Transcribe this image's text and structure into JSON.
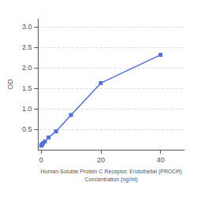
{
  "chart_data": {
    "type": "line",
    "xlabel": "Human Soluble Protein C Receptor, Endothelial (PROCR)\nConcentration (ng/ml)",
    "ylabel": "OD",
    "x": [
      0,
      0.156,
      0.313,
      0.625,
      1.25,
      2.5,
      5,
      10,
      20,
      40
    ],
    "values": [
      0.1,
      0.115,
      0.13,
      0.16,
      0.2,
      0.3,
      0.45,
      0.85,
      1.63,
      2.32
    ],
    "marker": "square",
    "xlim": [
      -1,
      48
    ],
    "xticks": [
      0,
      20,
      40
    ],
    "ylim": [
      0,
      3.2
    ],
    "yticks": [
      0.5,
      {
        "value": 1.0,
        "label": "1.0"
      },
      1.5,
      {
        "value": 2.0,
        "label": "2.0"
      },
      2.5,
      {
        "value": 3.0,
        "label": "3.0"
      }
    ],
    "grid": true
  }
}
